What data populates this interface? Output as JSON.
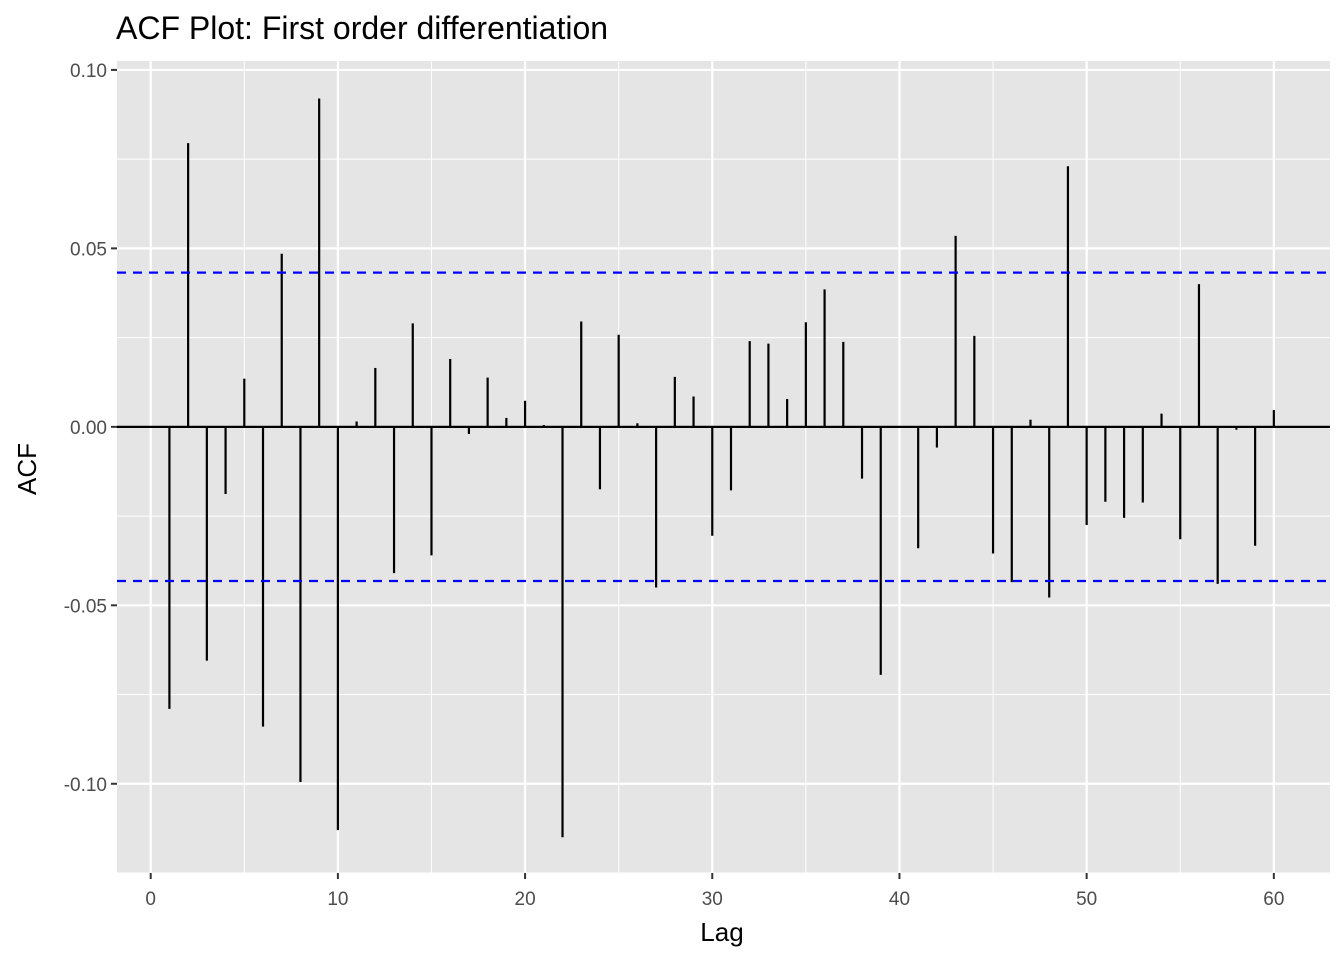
{
  "chart_data": {
    "type": "bar",
    "title": "ACF Plot: First order differentiation",
    "xlabel": "Lag",
    "ylabel": "ACF",
    "xlim": [
      -1.8,
      63
    ],
    "ylim": [
      -0.125,
      0.1025
    ],
    "x_ticks": [
      0,
      10,
      20,
      30,
      40,
      50,
      60
    ],
    "x_tick_labels": [
      "0",
      "10",
      "20",
      "30",
      "40",
      "50",
      "60"
    ],
    "y_ticks": [
      0.1,
      0.05,
      0.0,
      -0.05,
      -0.1
    ],
    "y_tick_labels": [
      "0.10",
      "0.05",
      "0.00",
      "-0.05",
      "-0.10"
    ],
    "y_minor_ticks": [
      0.075,
      0.025,
      -0.025,
      -0.075,
      -0.125
    ],
    "confidence_bound": 0.0432,
    "lags": [
      1,
      2,
      3,
      4,
      5,
      6,
      7,
      8,
      9,
      10,
      11,
      12,
      13,
      14,
      15,
      16,
      17,
      18,
      19,
      20,
      21,
      22,
      23,
      24,
      25,
      26,
      27,
      28,
      29,
      30,
      31,
      32,
      33,
      34,
      35,
      36,
      37,
      38,
      39,
      40,
      41,
      42,
      43,
      44,
      45,
      46,
      47,
      48,
      49,
      50,
      51,
      52,
      53,
      54,
      55,
      56,
      57,
      58,
      59,
      60
    ],
    "values": [
      -0.079,
      0.0795,
      -0.0655,
      -0.0188,
      0.0135,
      -0.084,
      0.0485,
      -0.0995,
      0.092,
      -0.113,
      0.0015,
      0.0165,
      -0.041,
      0.029,
      -0.036,
      0.019,
      -0.002,
      0.0138,
      0.0025,
      0.0073,
      0.0005,
      -0.115,
      0.0295,
      -0.0175,
      0.0258,
      0.001,
      -0.045,
      0.014,
      0.0085,
      -0.0305,
      -0.0178,
      0.024,
      0.0233,
      0.0078,
      0.0293,
      0.0385,
      0.0238,
      -0.0145,
      -0.0695,
      0.0,
      -0.034,
      -0.0058,
      0.0535,
      0.0255,
      -0.0355,
      -0.0435,
      0.002,
      -0.0478,
      0.073,
      -0.0275,
      -0.021,
      -0.0255,
      -0.0212,
      0.0037,
      -0.0315,
      0.04,
      -0.044,
      -0.0008,
      -0.0333,
      0.0047
    ],
    "colors": {
      "panel": "#e5e5e5",
      "grid": "#ffffff",
      "bar": "#000000",
      "bound": "#0000ff",
      "tick": "#333333"
    }
  }
}
